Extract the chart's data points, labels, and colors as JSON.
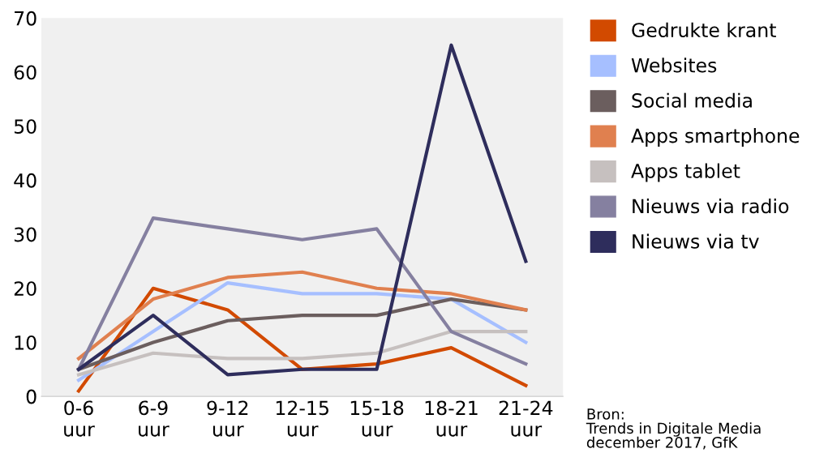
{
  "chart_data": {
    "type": "line",
    "categories": [
      "0-6\nuur",
      "6-9\nuur",
      "9-12\nuur",
      "12-15\nuur",
      "15-18\nuur",
      "18-21\nuur",
      "21-24\nuur"
    ],
    "series": [
      {
        "name": "Gedrukte krant",
        "color": "#d24a00",
        "values": [
          1,
          20,
          16,
          5,
          6,
          9,
          2
        ]
      },
      {
        "name": "Websites",
        "color": "#a6bfff",
        "values": [
          3,
          12,
          21,
          19,
          19,
          18,
          10
        ]
      },
      {
        "name": "Social media",
        "color": "#6b5e5e",
        "values": [
          5,
          10,
          14,
          15,
          15,
          18,
          16
        ]
      },
      {
        "name": "Apps smartphone",
        "color": "#e0804f",
        "values": [
          7,
          18,
          22,
          23,
          20,
          19,
          16
        ]
      },
      {
        "name": "Apps tablet",
        "color": "#c6c0bf",
        "values": [
          4,
          8,
          7,
          7,
          8,
          12,
          12
        ]
      },
      {
        "name": "Nieuws via radio",
        "color": "#8580a0",
        "values": [
          5,
          33,
          31,
          29,
          31,
          12,
          6
        ]
      },
      {
        "name": "Nieuws via tv",
        "color": "#2e2d5c",
        "values": [
          5,
          15,
          4,
          5,
          5,
          65,
          25
        ]
      }
    ],
    "ylim": [
      0,
      70
    ],
    "yticks": [
      0,
      10,
      20,
      30,
      40,
      50,
      60,
      70
    ],
    "grid": false,
    "legend": "right",
    "marker": "none",
    "line_style": "solid",
    "annotations": [
      "Bron:\nTrends in Digitale Media\ndecember 2017, GfK"
    ]
  }
}
